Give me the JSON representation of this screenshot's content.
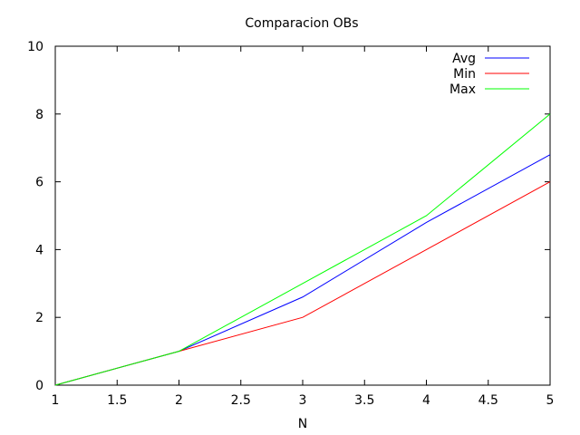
{
  "chart_data": {
    "type": "line",
    "title": "Comparacion OBs",
    "xlabel": "N",
    "ylabel": "",
    "xlim": [
      1,
      5
    ],
    "ylim": [
      0,
      10
    ],
    "x_ticks": [
      1,
      1.5,
      2,
      2.5,
      3,
      3.5,
      4,
      4.5,
      5
    ],
    "x_tick_labels": [
      "1",
      "1.5",
      "2",
      "2.5",
      "3",
      "3.5",
      "4",
      "4.5",
      "5"
    ],
    "y_ticks": [
      0,
      2,
      4,
      6,
      8,
      10
    ],
    "y_tick_labels": [
      "0",
      "2",
      "4",
      "6",
      "8",
      "10"
    ],
    "grid": false,
    "legend_position": "top-right",
    "x": [
      1,
      2,
      3,
      4,
      5
    ],
    "series": [
      {
        "name": "Avg",
        "color": "#0000ff",
        "values": [
          0,
          1,
          2.6,
          4.8,
          6.8
        ]
      },
      {
        "name": "Min",
        "color": "#ff0000",
        "values": [
          0,
          1,
          2,
          4,
          6
        ]
      },
      {
        "name": "Max",
        "color": "#00ff00",
        "values": [
          0,
          1,
          3,
          5,
          8
        ]
      }
    ]
  }
}
